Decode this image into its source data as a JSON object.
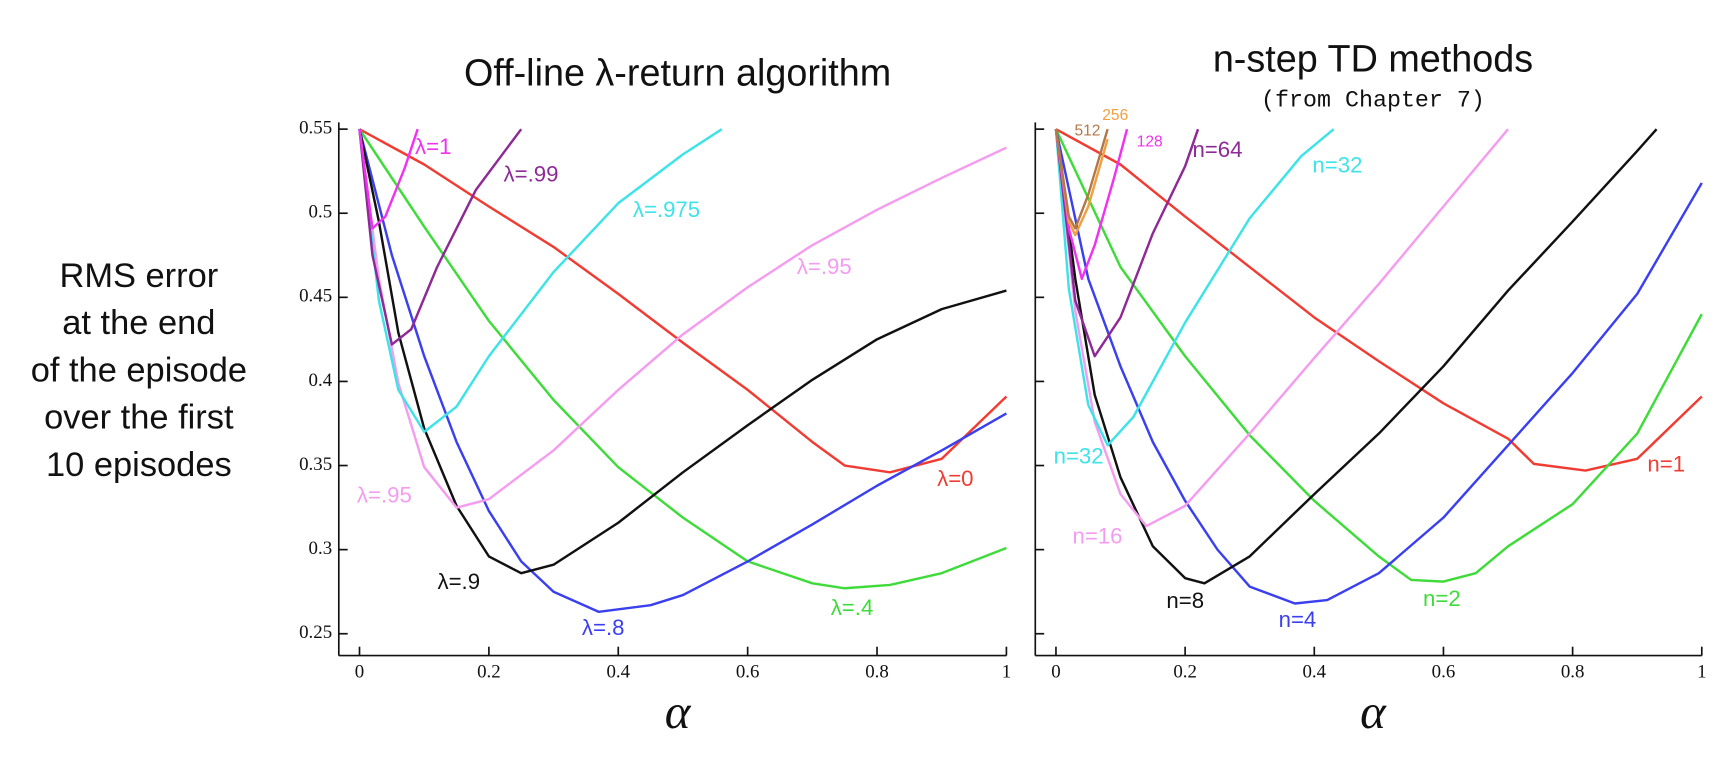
{
  "chart_data": [
    {
      "type": "line",
      "title": "Off-line λ-return algorithm",
      "xlabel": "α",
      "ylabel": [
        "RMS error",
        "at the end",
        "of the episode",
        "over the first",
        "10 episodes"
      ],
      "xlim": [
        -0.032,
        1
      ],
      "ylim": [
        0.237,
        0.554
      ],
      "xticks": [
        0,
        0.2,
        0.4,
        0.6,
        0.8,
        1
      ],
      "yticks": [
        0.25,
        0.3,
        0.35,
        0.4,
        0.45,
        0.5,
        0.55
      ],
      "series": [
        {
          "name": "λ=0",
          "color": "#f03c32",
          "x": [
            0,
            0.1,
            0.2,
            0.3,
            0.4,
            0.5,
            0.6,
            0.7,
            0.75,
            0.82,
            0.9,
            1
          ],
          "values": [
            0.55,
            0.529,
            0.504,
            0.48,
            0.452,
            0.423,
            0.395,
            0.364,
            0.35,
            0.346,
            0.354,
            0.391
          ]
        },
        {
          "name": "λ=.4",
          "color": "#3fdb3a",
          "x": [
            0,
            0.1,
            0.2,
            0.3,
            0.4,
            0.5,
            0.6,
            0.7,
            0.75,
            0.82,
            0.9,
            1
          ],
          "values": [
            0.55,
            0.492,
            0.436,
            0.389,
            0.349,
            0.319,
            0.293,
            0.28,
            0.277,
            0.279,
            0.286,
            0.301
          ]
        },
        {
          "name": "λ=.8",
          "color": "#3a3ff0",
          "x": [
            0,
            0.05,
            0.1,
            0.15,
            0.2,
            0.25,
            0.3,
            0.37,
            0.45,
            0.5,
            0.6,
            0.7,
            0.8,
            0.9,
            1
          ],
          "values": [
            0.55,
            0.475,
            0.415,
            0.364,
            0.323,
            0.293,
            0.275,
            0.263,
            0.267,
            0.273,
            0.293,
            0.315,
            0.338,
            0.359,
            0.381
          ]
        },
        {
          "name": "λ=.9",
          "color": "#111111",
          "x": [
            0,
            0.03,
            0.06,
            0.1,
            0.15,
            0.2,
            0.25,
            0.3,
            0.4,
            0.5,
            0.6,
            0.7,
            0.8,
            0.9,
            1
          ],
          "values": [
            0.55,
            0.495,
            0.429,
            0.372,
            0.326,
            0.296,
            0.286,
            0.291,
            0.316,
            0.346,
            0.374,
            0.401,
            0.425,
            0.443,
            0.454
          ]
        },
        {
          "name": "λ=.95",
          "color": "#f49cf0",
          "x": [
            0,
            0.03,
            0.06,
            0.1,
            0.15,
            0.2,
            0.3,
            0.4,
            0.5,
            0.6,
            0.7,
            0.8,
            0.9,
            1
          ],
          "values": [
            0.55,
            0.461,
            0.399,
            0.349,
            0.325,
            0.33,
            0.359,
            0.395,
            0.428,
            0.456,
            0.481,
            0.502,
            0.521,
            0.539
          ]
        },
        {
          "name": "λ=.975",
          "color": "#3de3e8",
          "x": [
            0,
            0.03,
            0.06,
            0.1,
            0.15,
            0.2,
            0.3,
            0.4,
            0.5,
            0.56
          ],
          "values": [
            0.55,
            0.448,
            0.395,
            0.37,
            0.385,
            0.415,
            0.465,
            0.506,
            0.535,
            0.55
          ]
        },
        {
          "name": "λ=.99",
          "color": "#8e2a96",
          "x": [
            0,
            0.02,
            0.05,
            0.08,
            0.12,
            0.18,
            0.25
          ],
          "values": [
            0.55,
            0.475,
            0.422,
            0.431,
            0.468,
            0.514,
            0.55
          ]
        },
        {
          "name": "λ=1",
          "color": "#f032f0",
          "x": [
            0,
            0.02,
            0.04,
            0.07,
            0.09
          ],
          "values": [
            0.55,
            0.491,
            0.498,
            0.527,
            0.55
          ]
        }
      ]
    },
    {
      "type": "line",
      "title": "n-step TD methods",
      "subtitle": "(from Chapter 7)",
      "xlabel": "α",
      "xlim": [
        -0.032,
        1
      ],
      "ylim": [
        0.237,
        0.554
      ],
      "show_ytick_labels": false,
      "xticks": [
        0,
        0.2,
        0.4,
        0.6,
        0.8,
        1
      ],
      "yticks": [
        0.25,
        0.3,
        0.35,
        0.4,
        0.45,
        0.5,
        0.55
      ],
      "series": [
        {
          "name": "n=1",
          "color": "#f03c32",
          "x": [
            0,
            0.1,
            0.2,
            0.3,
            0.4,
            0.5,
            0.6,
            0.7,
            0.74,
            0.82,
            0.9,
            1
          ],
          "values": [
            0.55,
            0.529,
            0.498,
            0.468,
            0.438,
            0.412,
            0.387,
            0.366,
            0.351,
            0.347,
            0.354,
            0.391
          ]
        },
        {
          "name": "n=2",
          "color": "#3fdb3a",
          "x": [
            0,
            0.1,
            0.2,
            0.3,
            0.4,
            0.5,
            0.55,
            0.6,
            0.65,
            0.7,
            0.8,
            0.9,
            1
          ],
          "values": [
            0.55,
            0.468,
            0.415,
            0.368,
            0.329,
            0.296,
            0.282,
            0.281,
            0.286,
            0.302,
            0.327,
            0.369,
            0.44
          ]
        },
        {
          "name": "n=4",
          "color": "#3a3ff0",
          "x": [
            0,
            0.05,
            0.1,
            0.15,
            0.2,
            0.25,
            0.3,
            0.37,
            0.42,
            0.5,
            0.6,
            0.7,
            0.8,
            0.9,
            1
          ],
          "values": [
            0.55,
            0.461,
            0.409,
            0.364,
            0.329,
            0.3,
            0.278,
            0.268,
            0.27,
            0.286,
            0.319,
            0.362,
            0.405,
            0.452,
            0.518
          ]
        },
        {
          "name": "n=8",
          "color": "#111111",
          "x": [
            0,
            0.03,
            0.06,
            0.1,
            0.15,
            0.2,
            0.23,
            0.3,
            0.4,
            0.5,
            0.6,
            0.7,
            0.8,
            0.9,
            0.93
          ],
          "values": [
            0.55,
            0.461,
            0.392,
            0.343,
            0.302,
            0.283,
            0.28,
            0.296,
            0.333,
            0.369,
            0.409,
            0.454,
            0.495,
            0.537,
            0.55
          ]
        },
        {
          "name": "n=16",
          "color": "#f49cf0",
          "x": [
            0,
            0.03,
            0.06,
            0.1,
            0.14,
            0.2,
            0.3,
            0.4,
            0.5,
            0.6,
            0.7
          ],
          "values": [
            0.55,
            0.442,
            0.376,
            0.333,
            0.314,
            0.326,
            0.369,
            0.414,
            0.458,
            0.504,
            0.55
          ]
        },
        {
          "name": "n=32",
          "color": "#3de3e8",
          "x": [
            0,
            0.02,
            0.05,
            0.08,
            0.12,
            0.2,
            0.3,
            0.38,
            0.43
          ],
          "values": [
            0.55,
            0.455,
            0.386,
            0.362,
            0.379,
            0.435,
            0.497,
            0.534,
            0.55
          ]
        },
        {
          "name": "n=64",
          "color": "#8e2a96",
          "x": [
            0,
            0.03,
            0.06,
            0.1,
            0.15,
            0.2,
            0.22
          ],
          "values": [
            0.55,
            0.448,
            0.415,
            0.438,
            0.488,
            0.528,
            0.55
          ]
        },
        {
          "name": "128",
          "color": "#f032f0",
          "x": [
            0,
            0.02,
            0.04,
            0.06,
            0.09,
            0.11
          ],
          "values": [
            0.55,
            0.491,
            0.461,
            0.481,
            0.521,
            0.55
          ]
        },
        {
          "name": "256",
          "color": "#f0a040",
          "x": [
            0,
            0.02,
            0.03,
            0.05,
            0.08
          ],
          "values": [
            0.55,
            0.495,
            0.487,
            0.504,
            0.544
          ]
        },
        {
          "name": "512",
          "color": "#b5784a",
          "x": [
            0,
            0.02,
            0.03,
            0.05,
            0.08
          ],
          "values": [
            0.55,
            0.498,
            0.491,
            0.511,
            0.55
          ]
        }
      ]
    }
  ]
}
